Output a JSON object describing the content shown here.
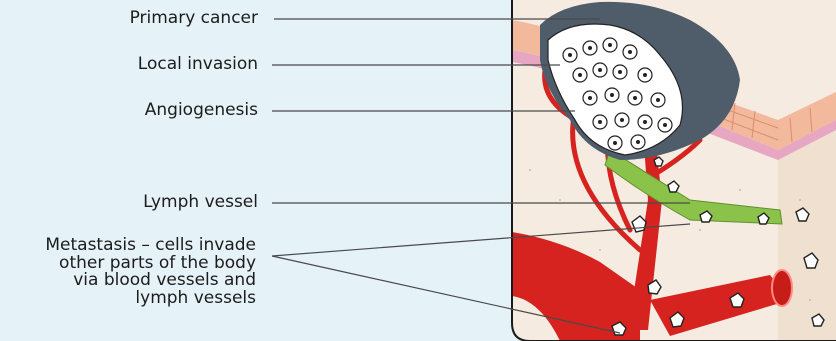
{
  "labels": {
    "primary_cancer": "Primary cancer",
    "local_invasion": "Local invasion",
    "angiogenesis": "Angiogenesis",
    "lymph_vessel": "Lymph vessel",
    "metastasis_lines": [
      "Metastasis – cells invade",
      "other parts of the body",
      "via blood vessels and",
      "lymph vessels"
    ]
  },
  "colors": {
    "background": "#e5f2f8",
    "tissue": "#f6ebe0",
    "skin": "#f2b99c",
    "tumor": "#4f5d6b",
    "blood_vessel": "#d6231f",
    "lymph_vessel": "#8bc34a",
    "leader_line": "#4a4a4a"
  }
}
